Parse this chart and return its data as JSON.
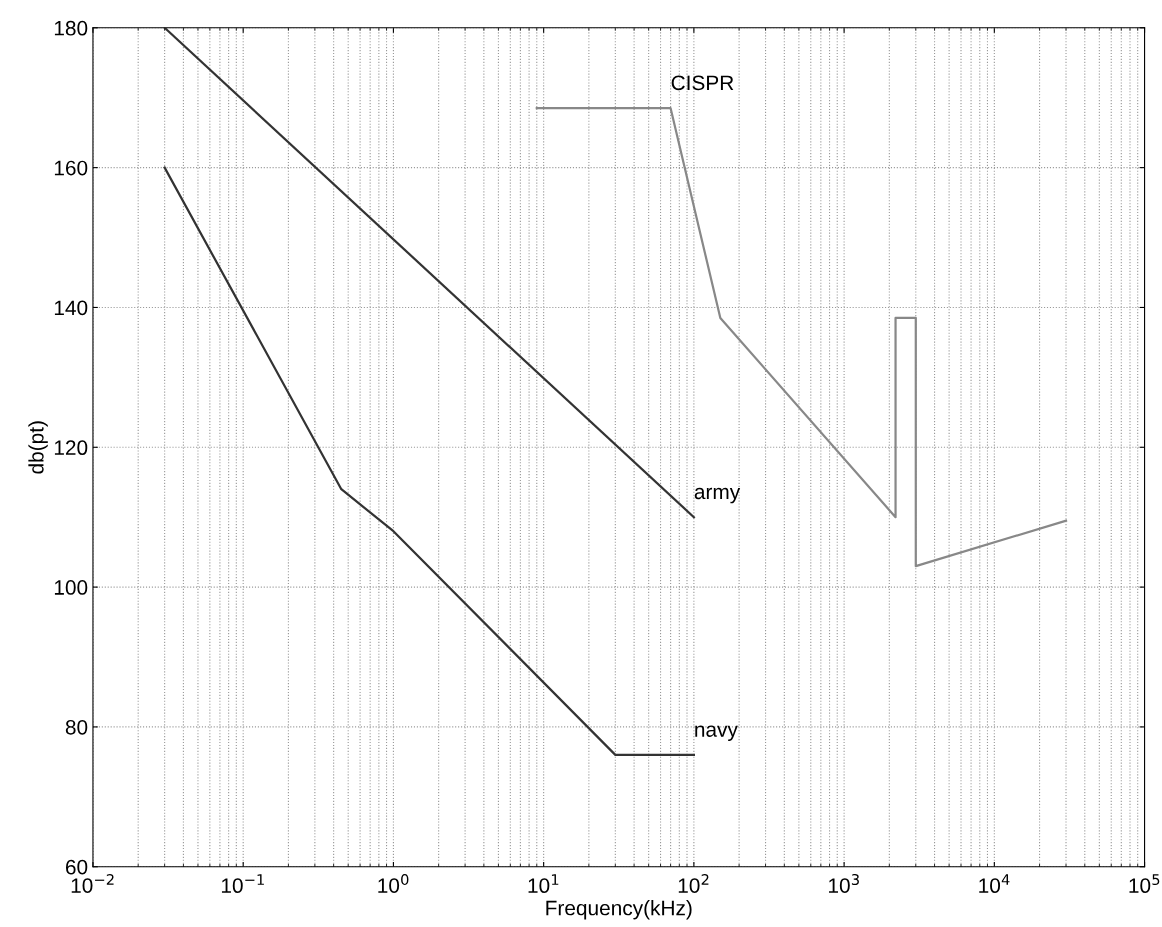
{
  "chart_data": {
    "type": "line",
    "xlabel": "Frequency(kHz)",
    "ylabel": "db(pt)",
    "log": "x",
    "xlim": [
      0.01,
      100000
    ],
    "xticks": [
      {
        "value": 0.01,
        "label": "10$^{−2}$"
      },
      {
        "value": 0.1,
        "label": "10$^{−1}$"
      },
      {
        "value": 1,
        "label": "10$^{0}$"
      },
      {
        "value": 10,
        "label": "10$^{1}$"
      },
      {
        "value": 100,
        "label": "10$^{2}$"
      },
      {
        "value": 1000,
        "label": "10$^{3}$"
      },
      {
        "value": 10000,
        "label": "10$^{4}$"
      },
      {
        "value": 100000,
        "label": "10$^{5}$"
      }
    ],
    "ylim": [
      60,
      180
    ],
    "yticks": [
      60,
      80,
      100,
      120,
      140,
      160,
      180
    ],
    "grid": true,
    "line_style": "solid",
    "marker": "none",
    "series": [
      {
        "name": "army",
        "color": "#333333",
        "x": [
          0.03,
          100
        ],
        "values": [
          180,
          110
        ]
      },
      {
        "name": "navy",
        "color": "#333333",
        "x": [
          0.03,
          0.45,
          1,
          30,
          100
        ],
        "values": [
          160,
          114,
          108,
          76,
          76
        ]
      },
      {
        "name": "CISPR",
        "color": "#888888",
        "x": [
          9,
          70,
          150,
          2200,
          2200,
          3000,
          3000,
          30000
        ],
        "values": [
          168.5,
          168.5,
          138.5,
          110,
          138.5,
          138.5,
          103,
          109.5
        ]
      }
    ]
  }
}
